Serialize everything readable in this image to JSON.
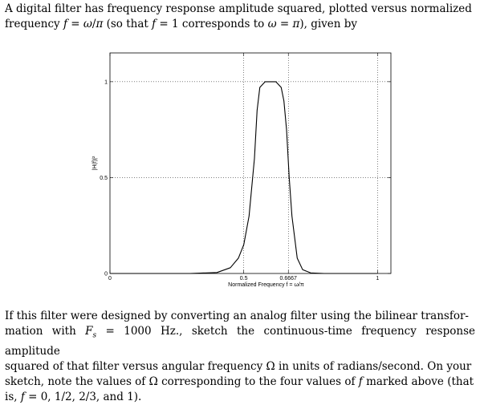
{
  "intro": {
    "line1": "A digital filter has frequency response amplitude squared, plotted versus normalized",
    "line2": "frequency f = ω/π (so that f = 1 corresponds to ω = π), given by"
  },
  "question": {
    "line1": "If this filter were designed by converting an analog filter using the bilinear transfor-",
    "line2": "mation with F_s = 1000 Hz., sketch the continuous-time frequency response amplitude",
    "line3": "squared of that filter versus angular frequency Ω in units of radians/second. On your",
    "line4": "sketch, note the values of Ω corresponding to the four values of f marked above (that",
    "line5": "is, f = 0, 1/2, 2/3, and 1)."
  },
  "chart_data": {
    "type": "line",
    "title": "",
    "xlabel": "Normalized Frequency f = ω/π",
    "ylabel": "|H(f)|²",
    "xlim": [
      0,
      1.05
    ],
    "ylim": [
      0,
      1.15
    ],
    "x_ticks": [
      "0",
      "0.5",
      "0.6667",
      "1"
    ],
    "x_tick_values": [
      0,
      0.5,
      0.6667,
      1
    ],
    "y_ticks": [
      "0",
      "0.5",
      "1"
    ],
    "y_tick_values": [
      0,
      0.5,
      1
    ],
    "grid": true,
    "series": [
      {
        "x": [
          0,
          0.3,
          0.4,
          0.45,
          0.48,
          0.5,
          0.52,
          0.54,
          0.55,
          0.56,
          0.58,
          0.6,
          0.62,
          0.64,
          0.65,
          0.66,
          0.67,
          0.68,
          0.7,
          0.72,
          0.75,
          0.8,
          0.9,
          1.0
        ],
        "y": [
          0,
          0,
          0.005,
          0.03,
          0.08,
          0.15,
          0.3,
          0.6,
          0.85,
          0.97,
          1.0,
          1.0,
          1.0,
          0.97,
          0.9,
          0.75,
          0.5,
          0.3,
          0.08,
          0.02,
          0.003,
          0,
          0,
          0
        ]
      }
    ]
  }
}
